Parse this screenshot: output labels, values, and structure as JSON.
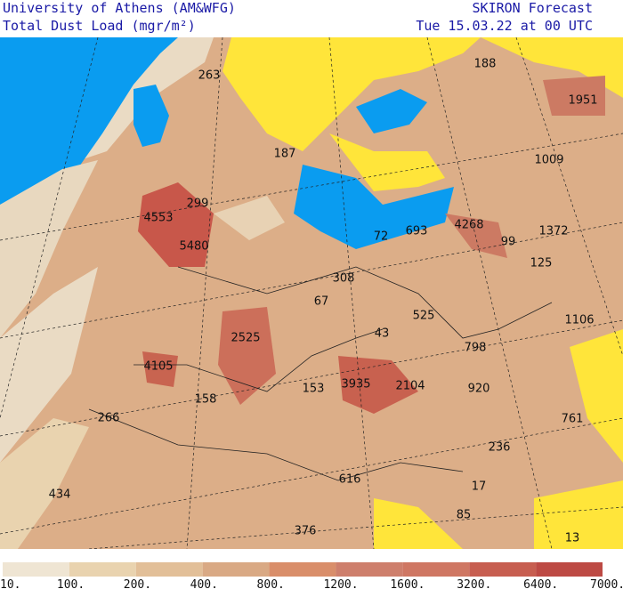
{
  "header": {
    "institution": "University of Athens (AM&WFG)",
    "product": "Total Dust Load (mgr/m²)",
    "model": "SKIRON Forecast",
    "valid_time": "Tue 15.03.22 at 00 UTC"
  },
  "map_labels": [
    188,
    263,
    1951,
    187,
    1009,
    299,
    4553,
    4268,
    693,
    72,
    99,
    1372,
    5480,
    125,
    308,
    67,
    525,
    1106,
    43,
    2525,
    798,
    4105,
    3935,
    2104,
    920,
    153,
    158,
    761,
    266,
    236,
    616,
    17,
    434,
    85,
    376,
    13
  ],
  "colorbar": {
    "labels": [
      "10.",
      "100.",
      "200.",
      "400.",
      "800.",
      "1200.",
      "1600.",
      "3200.",
      "6400.",
      "7000."
    ]
  }
}
